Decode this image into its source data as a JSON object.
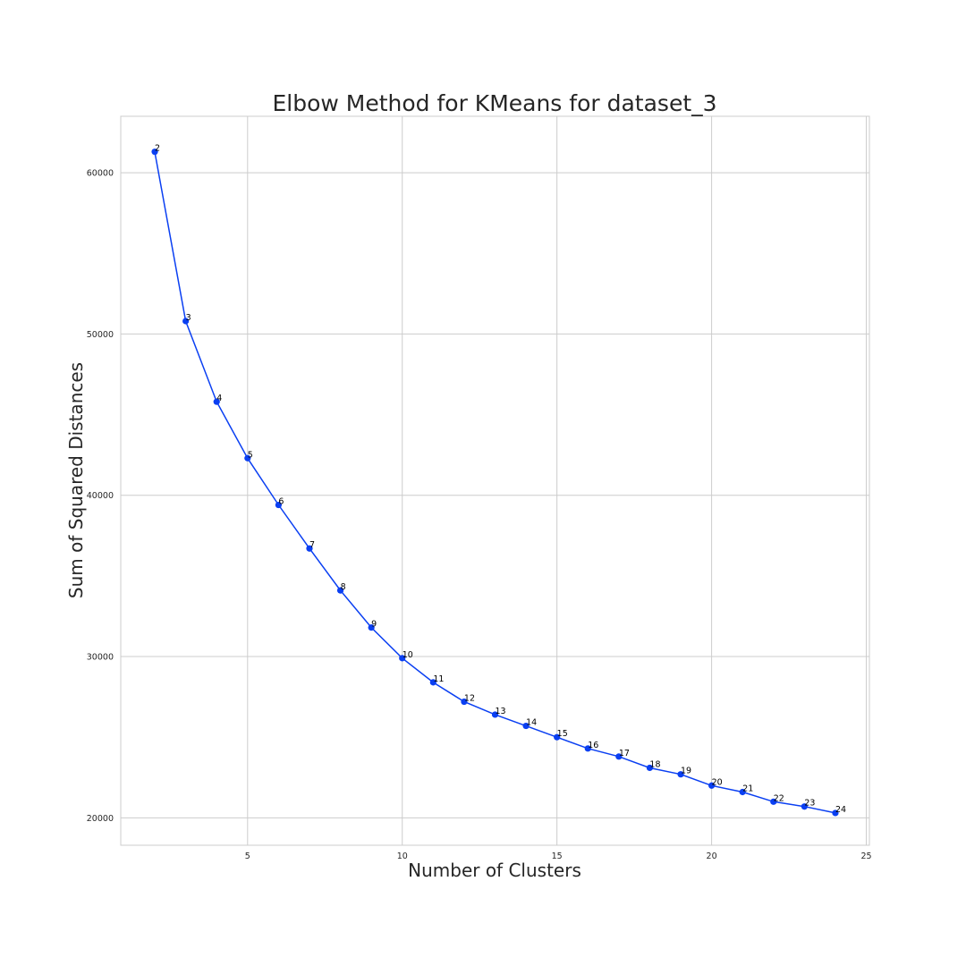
{
  "chart_data": {
    "type": "line",
    "title": "Elbow Method for KMeans for dataset_3",
    "xlabel": "Number of Clusters",
    "ylabel": "Sum of Squared Distances",
    "xlim": [
      0.9,
      25.1
    ],
    "ylim": [
      18300,
      63500
    ],
    "x_ticks": [
      5,
      10,
      15,
      20,
      25
    ],
    "y_ticks": [
      20000,
      30000,
      40000,
      50000,
      60000
    ],
    "grid": true,
    "line_color": "#0a3ff2",
    "grid_color": "#cccccc",
    "series": [
      {
        "x": [
          2,
          3,
          4,
          5,
          6,
          7,
          8,
          9,
          10,
          11,
          12,
          13,
          14,
          15,
          16,
          17,
          18,
          19,
          20,
          21,
          22,
          23,
          24
        ],
        "values": [
          61300,
          50800,
          45800,
          42300,
          39400,
          36700,
          34100,
          31800,
          29900,
          28400,
          27200,
          26400,
          25700,
          25000,
          24300,
          23800,
          23100,
          22700,
          22000,
          21600,
          21000,
          20700,
          20300
        ],
        "point_labels": [
          "2",
          "3",
          "4",
          "5",
          "6",
          "7",
          "8",
          "9",
          "10",
          "11",
          "12",
          "13",
          "14",
          "15",
          "16",
          "17",
          "18",
          "19",
          "20",
          "21",
          "22",
          "23",
          "24"
        ]
      }
    ]
  }
}
